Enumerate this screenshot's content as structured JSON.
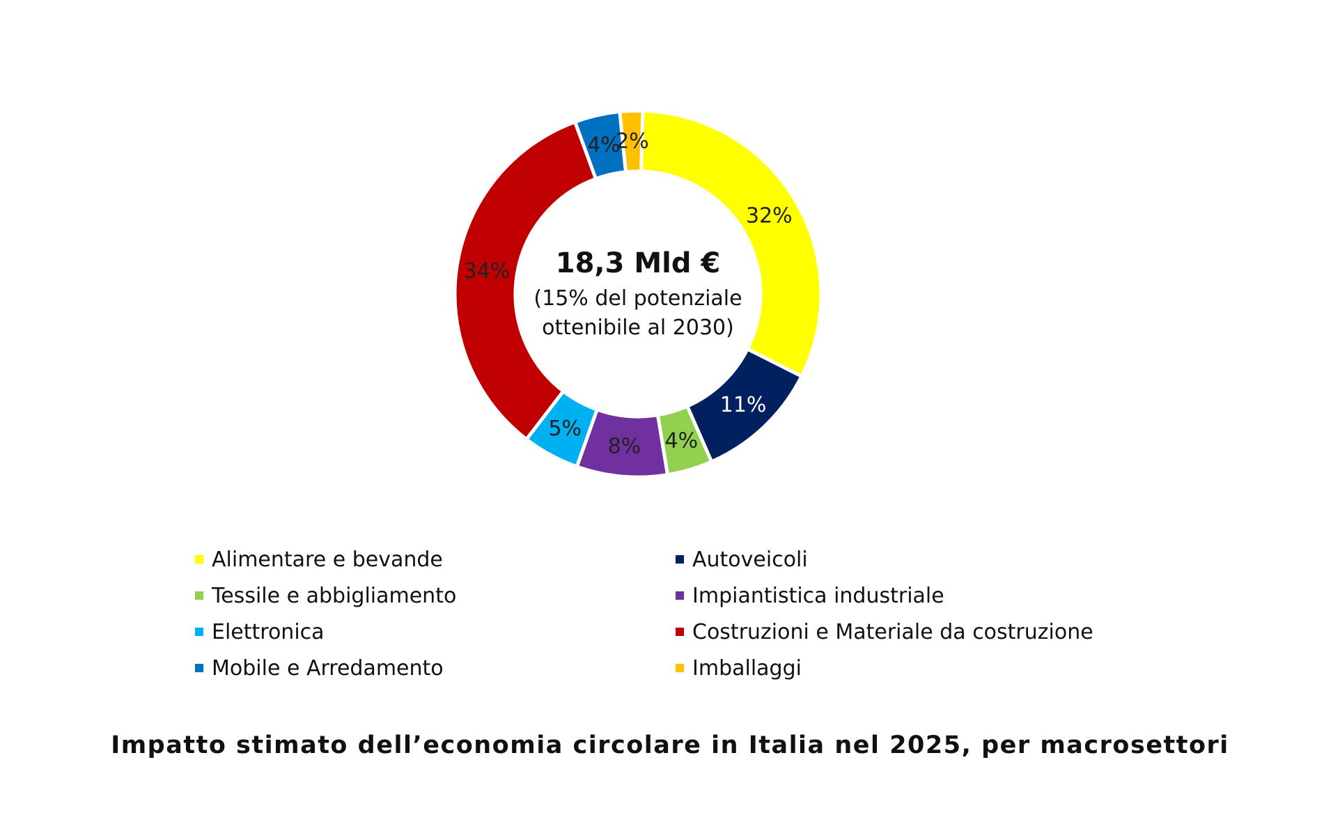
{
  "chart_data": {
    "type": "pie",
    "variant": "donut",
    "categories": [
      "Alimentare e bevande",
      "Autoveicoli",
      "Tessile e abbigliamento",
      "Impiantistica industriale",
      "Elettronica",
      "Costruzioni e Materiale da costruzione",
      "Mobile e Arredamento",
      "Imballaggi"
    ],
    "values": [
      32,
      11,
      4,
      8,
      5,
      34,
      4,
      2
    ],
    "data_labels": [
      "32%",
      "11%",
      "4%",
      "8%",
      "5%",
      "34%",
      "4%",
      "2%"
    ],
    "colors": [
      "#FFFF00",
      "#002060",
      "#92D050",
      "#7030A0",
      "#00B0F0",
      "#C00000",
      "#0070C0",
      "#FFC000"
    ],
    "label_colors": [
      "#222222",
      "#FFFFFF",
      "#222222",
      "#222222",
      "#222222",
      "#222222",
      "#222222",
      "#222222"
    ],
    "center_title": "18,3 Mld €",
    "center_subtitle_lines": [
      "(15% del potenziale",
      "ottenibile al 2030)"
    ],
    "legend_order": [
      0,
      1,
      2,
      3,
      4,
      5,
      6,
      7
    ],
    "legend_placement": "bottom",
    "caption": "Impatto stimato dell’economia circolare in Italia nel 2025, per macrosettori"
  }
}
